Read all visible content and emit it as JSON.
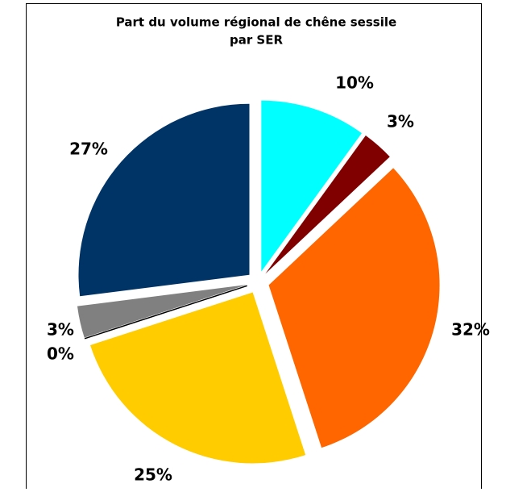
{
  "chart_data": {
    "type": "pie",
    "title": [
      "Part du volume régional de chêne sessile",
      "par SER"
    ],
    "values": [
      10,
      3,
      32,
      25,
      0,
      3,
      27
    ],
    "value_labels": [
      "10%",
      "3%",
      "32%",
      "25%",
      "0%",
      "3%",
      "27%"
    ],
    "colors": [
      "#00ffff",
      "#800000",
      "#ff6600",
      "#ffcc00",
      "#000000",
      "#808080",
      "#003366"
    ]
  }
}
